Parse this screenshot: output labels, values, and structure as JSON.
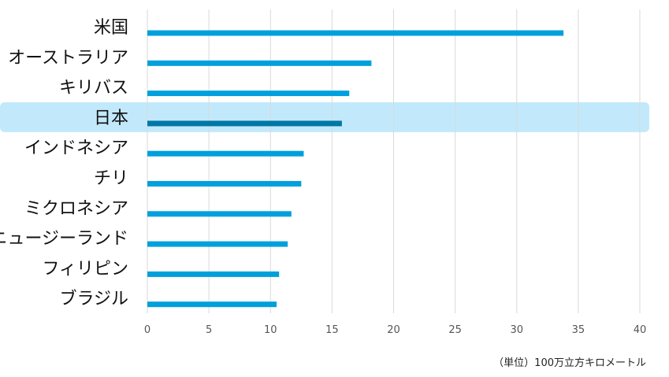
{
  "chart_data": {
    "type": "bar",
    "orientation": "horizontal",
    "categories": [
      "米国",
      "オーストラリア",
      "キリバス",
      "日本",
      "インドネシア",
      "チリ",
      "ミクロネシア",
      "ニュージーランド",
      "フィリピン",
      "ブラジル"
    ],
    "values": [
      33.8,
      18.2,
      16.4,
      15.8,
      12.7,
      12.5,
      11.7,
      11.4,
      10.7,
      10.5
    ],
    "highlight_category": "日本",
    "xlim": [
      0,
      40
    ],
    "x_ticks": [
      "0",
      "5",
      "10",
      "15",
      "20",
      "25",
      "30",
      "35",
      "40"
    ],
    "unit_label": "（単位）100万立方キロメートル",
    "grid": "vertical",
    "colors": {
      "bar": "#00a0dc",
      "bar_highlight": "#0077a8",
      "highlight_band": "#c2e9fb",
      "grid": "#d9d9d9"
    }
  }
}
